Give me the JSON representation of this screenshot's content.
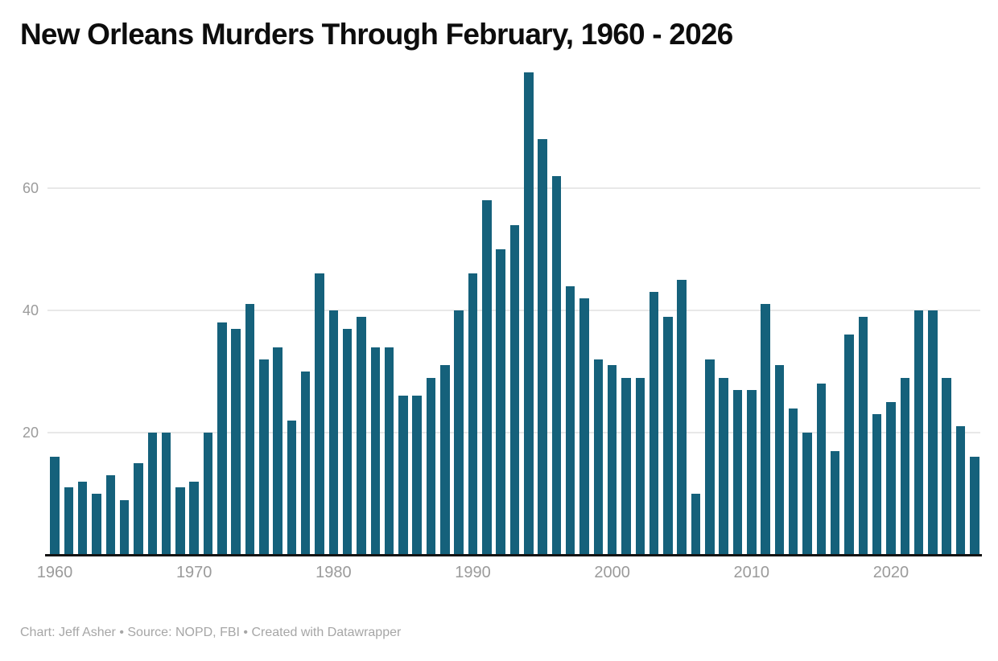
{
  "title": "New Orleans Murders Through February, 1960 - 2026",
  "footer": "Chart: Jeff Asher • Source: NOPD, FBI • Created with Datawrapper",
  "colors": {
    "bar": "#15617b",
    "axis_line": "#141414",
    "grid_line": "#e8e8e8",
    "tick_label": "#9b9b9b",
    "footer_text": "#a6a6a6",
    "title_text": "#0d0d0d",
    "background": "#ffffff"
  },
  "chart_data": {
    "type": "bar",
    "title": "New Orleans Murders Through February, 1960 - 2026",
    "xlabel": "",
    "ylabel": "",
    "categories": [
      1960,
      1961,
      1962,
      1963,
      1964,
      1965,
      1966,
      1967,
      1968,
      1969,
      1970,
      1971,
      1972,
      1973,
      1974,
      1975,
      1976,
      1977,
      1978,
      1979,
      1980,
      1981,
      1982,
      1983,
      1984,
      1985,
      1986,
      1987,
      1988,
      1989,
      1990,
      1991,
      1992,
      1993,
      1994,
      1995,
      1996,
      1997,
      1998,
      1999,
      2000,
      2001,
      2002,
      2003,
      2004,
      2005,
      2006,
      2007,
      2008,
      2009,
      2010,
      2011,
      2012,
      2013,
      2014,
      2015,
      2016,
      2017,
      2018,
      2019,
      2020,
      2021,
      2022,
      2023,
      2024,
      2025,
      2026
    ],
    "values": [
      16,
      11,
      12,
      10,
      13,
      9,
      15,
      20,
      20,
      11,
      12,
      20,
      38,
      37,
      41,
      32,
      34,
      22,
      30,
      46,
      40,
      37,
      39,
      34,
      34,
      26,
      26,
      29,
      31,
      40,
      46,
      58,
      50,
      54,
      79,
      68,
      62,
      44,
      42,
      32,
      31,
      29,
      29,
      43,
      39,
      45,
      10,
      32,
      29,
      27,
      27,
      41,
      31,
      24,
      20,
      28,
      17,
      36,
      39,
      23,
      25,
      29,
      40,
      40,
      29,
      21,
      16
    ],
    "y_ticks": [
      20,
      40,
      60
    ],
    "x_ticks": [
      1960,
      1970,
      1980,
      1990,
      2000,
      2010,
      2020
    ],
    "ylim": [
      0,
      80
    ],
    "grid": "horizontal",
    "legend": "none"
  }
}
